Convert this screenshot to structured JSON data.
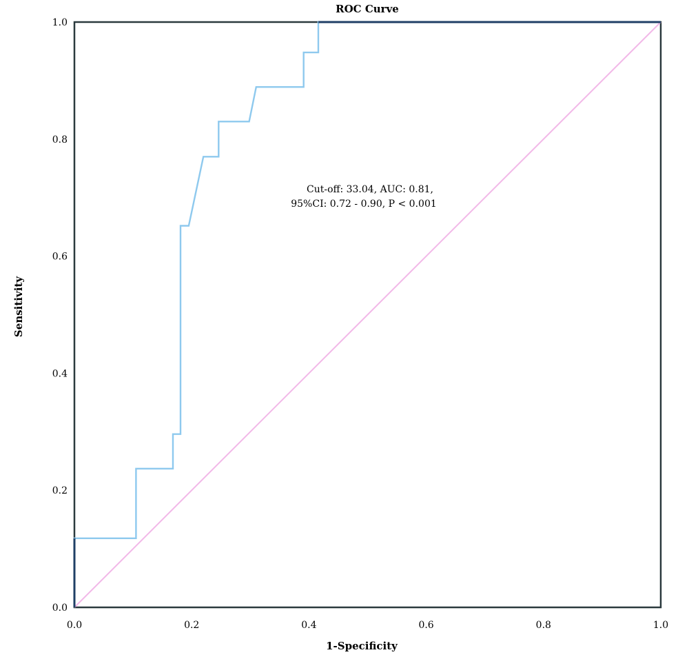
{
  "chart_data": {
    "type": "line",
    "title": "ROC Curve",
    "xlabel": "1-Specificity",
    "ylabel": "Sensitivity",
    "xlim": [
      0,
      1
    ],
    "ylim": [
      0,
      1
    ],
    "x_ticks": [
      "0.0",
      "0.2",
      "0.4",
      "0.6",
      "0.8",
      "1.0"
    ],
    "y_ticks": [
      "0.0",
      "0.2",
      "0.4",
      "0.6",
      "0.8",
      "1.0"
    ],
    "grid": false,
    "annotation": [
      "Cut-off: 33.04, AUC: 0.81,",
      "95%CI: 0.72 - 0.90, P < 0.001"
    ],
    "series": [
      {
        "color": "#8ec9ee",
        "x": [
          0,
          0,
          0.105,
          0.105,
          0.168,
          0.168,
          0.181,
          0.181,
          0.195,
          0.22,
          0.246,
          0.246,
          0.298,
          0.31,
          0.391,
          0.391,
          0.416,
          0.416,
          1.0
        ],
        "y": [
          0,
          0.118,
          0.118,
          0.237,
          0.237,
          0.296,
          0.296,
          0.652,
          0.652,
          0.77,
          0.77,
          0.83,
          0.83,
          0.889,
          0.889,
          0.948,
          0.948,
          1.0,
          1.0
        ]
      },
      {
        "color": "#f2b8e8",
        "x": [
          0,
          1
        ],
        "y": [
          0,
          1
        ]
      }
    ],
    "colors": {
      "frame": "#2b3a3e",
      "axis_blue": "#1f3f66",
      "roc": "#8ec9ee",
      "reference": "#f2b8e8"
    }
  }
}
